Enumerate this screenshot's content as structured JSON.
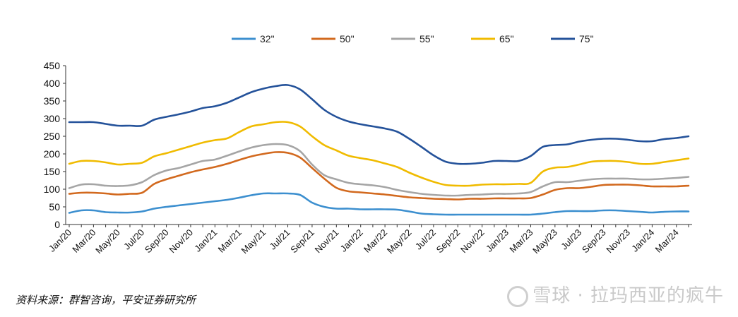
{
  "chart_data": {
    "type": "line",
    "title": "",
    "xlabel": "",
    "ylabel": "",
    "ylim": [
      0,
      450
    ],
    "y_ticks": [
      "0",
      "50",
      "100",
      "150",
      "200",
      "250",
      "300",
      "350",
      "400",
      "450"
    ],
    "grid": false,
    "legend_position": "top",
    "categories": [
      "Jan/20",
      "Feb/20",
      "Mar/20",
      "Apr/20",
      "May/20",
      "Jun/20",
      "Jul/20",
      "Aug/20",
      "Sep/20",
      "Oct/20",
      "Nov/20",
      "Dec/20",
      "Jan/21",
      "Feb/21",
      "Mar/21",
      "Apr/21",
      "May/21",
      "Jun/21",
      "Jul/21",
      "Aug/21",
      "Sep/21",
      "Oct/21",
      "Nov/21",
      "Dec/21",
      "Jan/22",
      "Feb/22",
      "Mar/22",
      "Apr/22",
      "May/22",
      "Jun/22",
      "Jul/22",
      "Aug/22",
      "Sep/22",
      "Oct/22",
      "Nov/22",
      "Dec/22",
      "Jan/23",
      "Feb/23",
      "Mar/23",
      "Apr/23",
      "May/23",
      "Jun/23",
      "Jul/23",
      "Aug/23",
      "Sep/23",
      "Oct/23",
      "Nov/23",
      "Dec/23",
      "Jan/24",
      "Feb/24",
      "Mar/24",
      "Apr/24"
    ],
    "x_tick_labels": [
      "Jan/20",
      "Mar/20",
      "May/20",
      "Jul/20",
      "Sep/20",
      "Nov/20",
      "Jan/21",
      "Mar/21",
      "May/21",
      "Jul/21",
      "Sep/21",
      "Nov/21",
      "Jan/22",
      "Mar/22",
      "May/22",
      "Jul/22",
      "Sep/22",
      "Nov/22",
      "Jan/23",
      "Mar/23",
      "May/23",
      "Jul/23",
      "Sep/23",
      "Nov/23",
      "Jan/24",
      "Mar/24"
    ],
    "series": [
      {
        "name": "32\"",
        "color": "#3c8fcf",
        "values": [
          33,
          40,
          40,
          35,
          34,
          34,
          37,
          45,
          50,
          54,
          58,
          62,
          66,
          70,
          76,
          83,
          88,
          88,
          88,
          84,
          62,
          50,
          45,
          45,
          43,
          43,
          43,
          42,
          37,
          31,
          29,
          28,
          28,
          28,
          28,
          28,
          28,
          28,
          28,
          31,
          35,
          38,
          38,
          38,
          40,
          40,
          38,
          36,
          34,
          36,
          37,
          37
        ]
      },
      {
        "name": "50\"",
        "color": "#d2691e",
        "values": [
          87,
          90,
          90,
          88,
          85,
          87,
          90,
          115,
          128,
          138,
          148,
          156,
          163,
          172,
          183,
          193,
          200,
          205,
          203,
          190,
          160,
          130,
          104,
          94,
          91,
          88,
          85,
          81,
          77,
          75,
          73,
          72,
          71,
          73,
          73,
          74,
          74,
          74,
          75,
          85,
          98,
          103,
          103,
          107,
          112,
          113,
          113,
          111,
          108,
          108,
          108,
          110
        ]
      },
      {
        "name": "55\"",
        "color": "#a5a5a5",
        "values": [
          103,
          113,
          114,
          110,
          109,
          111,
          120,
          140,
          153,
          160,
          170,
          180,
          184,
          195,
          207,
          218,
          225,
          228,
          225,
          208,
          170,
          140,
          128,
          118,
          114,
          111,
          106,
          98,
          92,
          87,
          84,
          82,
          82,
          84,
          85,
          87,
          87,
          88,
          92,
          108,
          120,
          120,
          124,
          128,
          130,
          130,
          130,
          128,
          128,
          130,
          132,
          135
        ]
      },
      {
        "name": "65\"",
        "color": "#f0bb00",
        "values": [
          172,
          180,
          180,
          176,
          170,
          172,
          175,
          193,
          202,
          212,
          222,
          232,
          239,
          244,
          262,
          278,
          284,
          290,
          290,
          278,
          250,
          225,
          210,
          195,
          188,
          182,
          173,
          163,
          147,
          133,
          121,
          112,
          110,
          110,
          113,
          114,
          114,
          115,
          118,
          150,
          161,
          163,
          170,
          178,
          180,
          180,
          177,
          172,
          172,
          177,
          182,
          187
        ]
      },
      {
        "name": "75\"",
        "color": "#24529a",
        "values": [
          290,
          290,
          290,
          285,
          280,
          280,
          280,
          297,
          305,
          312,
          320,
          330,
          335,
          345,
          360,
          375,
          385,
          392,
          395,
          383,
          355,
          325,
          305,
          292,
          284,
          278,
          272,
          263,
          243,
          220,
          196,
          178,
          172,
          172,
          175,
          180,
          180,
          180,
          194,
          220,
          225,
          227,
          235,
          240,
          243,
          243,
          240,
          236,
          236,
          242,
          245,
          250
        ]
      }
    ]
  },
  "footer": {
    "source": "资料来源：群智咨询，平安证券研究所",
    "watermark": "雪球 · 拉玛西亚的疯牛"
  }
}
